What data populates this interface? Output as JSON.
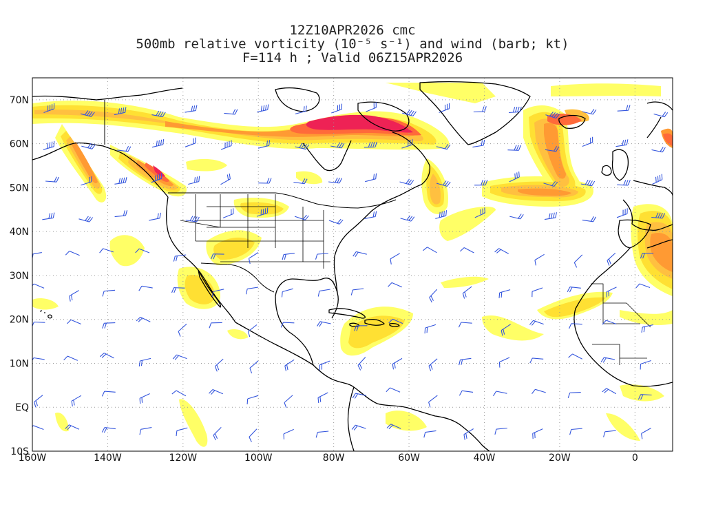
{
  "header": {
    "line1": "12Z10APR2026 cmc",
    "line2": "500mb relative vorticity (10⁻⁵ s⁻¹) and wind (barb; kt)",
    "line3": "F=114 h ; Valid 06Z15APR2026"
  },
  "map": {
    "lon_range": [
      -160,
      10
    ],
    "lat_range": [
      -10,
      75
    ],
    "lat_labels": [
      {
        "lat": 70,
        "text": "70N"
      },
      {
        "lat": 60,
        "text": "60N"
      },
      {
        "lat": 50,
        "text": "50N"
      },
      {
        "lat": 40,
        "text": "40N"
      },
      {
        "lat": 30,
        "text": "30N"
      },
      {
        "lat": 20,
        "text": "20N"
      },
      {
        "lat": 10,
        "text": "10N"
      },
      {
        "lat": 0,
        "text": "EQ"
      },
      {
        "lat": -10,
        "text": "10S"
      }
    ],
    "lon_labels": [
      {
        "lon": -160,
        "text": "160W"
      },
      {
        "lon": -140,
        "text": "140W"
      },
      {
        "lon": -120,
        "text": "120W"
      },
      {
        "lon": -100,
        "text": "100W"
      },
      {
        "lon": -80,
        "text": "80W"
      },
      {
        "lon": -60,
        "text": "60W"
      },
      {
        "lon": -40,
        "text": "40W"
      },
      {
        "lon": -20,
        "text": "20W"
      },
      {
        "lon": 0,
        "text": "0"
      }
    ],
    "gridlines": "dotted",
    "shading_colors": [
      "#ffff66",
      "#ffe033",
      "#ffc040",
      "#ff9a33",
      "#ff6a3a",
      "#ee2255"
    ],
    "barb_color": "#3355dd",
    "coastline_color": "#000000",
    "vorticity_features": [
      {
        "name": "polar jet north Canada",
        "level": 4
      },
      {
        "name": "Hudson Bay / Labrador maximum",
        "level": 6
      },
      {
        "name": "Alaska panhandle band",
        "level": 5
      },
      {
        "name": "mid-Atlantic trough",
        "level": 4
      },
      {
        "name": "Iceland loop",
        "level": 4
      },
      {
        "name": "Caribbean band",
        "level": 2
      },
      {
        "name": "Iberia cut-off",
        "level": 4
      }
    ]
  }
}
